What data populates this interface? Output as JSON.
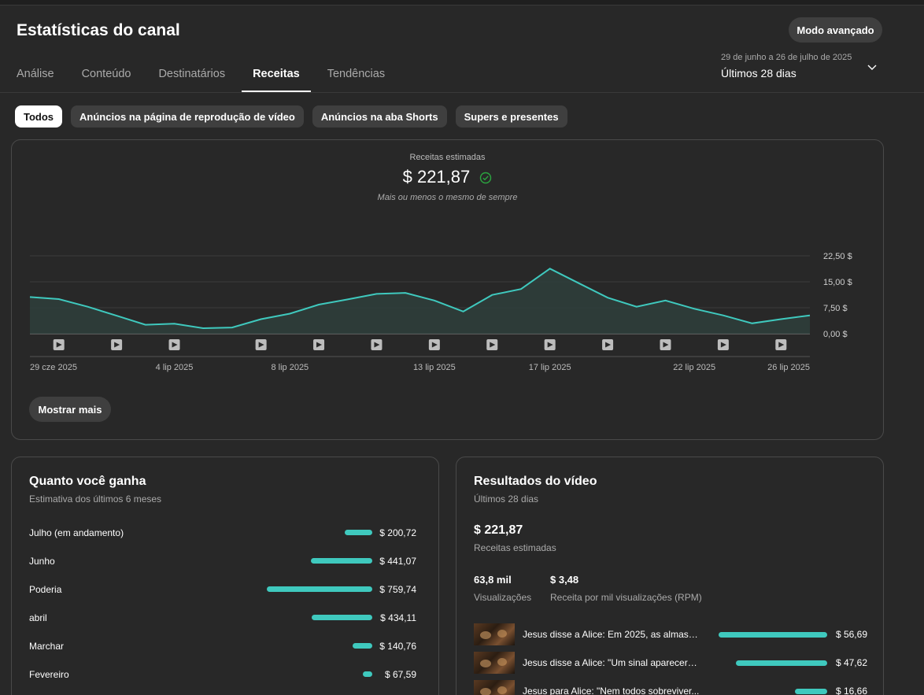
{
  "header": {
    "title": "Estatísticas do canal",
    "advanced_mode": "Modo avançado",
    "date_range_sub": "29 de junho a 26 de julho de 2025",
    "date_range_main": "Últimos 28 dias"
  },
  "tabs": [
    {
      "label": "Análise"
    },
    {
      "label": "Conteúdo"
    },
    {
      "label": "Destinatários"
    },
    {
      "label": "Receitas",
      "active": true
    },
    {
      "label": "Tendências"
    }
  ],
  "chips": [
    {
      "label": "Todos",
      "active": true
    },
    {
      "label": "Anúncios na página de reprodução de vídeo"
    },
    {
      "label": "Anúncios na aba Shorts"
    },
    {
      "label": "Supers e presentes"
    }
  ],
  "revenue": {
    "label": "Receitas estimadas",
    "value": "$ 221,87",
    "note": "Mais ou menos o mesmo de sempre",
    "more_button": "Mostrar mais"
  },
  "chart_data": {
    "type": "area",
    "title": "",
    "x_labels": [
      "29 cze 2025",
      "4 lip 2025",
      "8 lip 2025",
      "13 lip 2025",
      "17 lip 2025",
      "22 lip 2025",
      "26 lip 2025"
    ],
    "x_label_index": [
      0,
      5,
      9,
      14,
      18,
      23,
      27
    ],
    "y_ticks": [
      "22,50 $",
      "15,00 $",
      "7,50 $",
      "0,00 $"
    ],
    "ylim": [
      0,
      22.5
    ],
    "values": [
      10.6,
      10.0,
      7.8,
      5.2,
      2.6,
      2.9,
      1.6,
      1.8,
      4.2,
      5.8,
      8.4,
      9.9,
      11.5,
      11.8,
      9.6,
      6.4,
      11.2,
      12.9,
      18.8,
      14.6,
      10.4,
      7.8,
      9.6,
      7.2,
      5.3,
      3.0,
      4.2,
      5.3
    ],
    "video_markers": [
      1,
      3,
      5,
      8,
      10,
      12,
      14,
      16,
      18,
      20,
      22,
      24,
      26
    ],
    "accent": "#3fc9be",
    "fill": "#2e3e3b"
  },
  "earnings": {
    "title": "Quanto você ganha",
    "subtitle": "Estimativa dos últimos 6 meses",
    "max": 759.74,
    "rows": [
      {
        "label": "Julho (em andamento)",
        "value": 200.72,
        "text": "$ 200,72"
      },
      {
        "label": "Junho",
        "value": 441.07,
        "text": "$ 441,07"
      },
      {
        "label": "Poderia",
        "value": 759.74,
        "text": "$ 759,74"
      },
      {
        "label": "abril",
        "value": 434.11,
        "text": "$ 434,11"
      },
      {
        "label": "Marchar",
        "value": 140.76,
        "text": "$ 140,76"
      },
      {
        "label": "Fevereiro",
        "value": 67.59,
        "text": "$ 67,59"
      }
    ]
  },
  "video_results": {
    "title": "Resultados do vídeo",
    "subtitle": "Últimos 28 dias",
    "total": "$ 221,87",
    "total_label": "Receitas estimadas",
    "views_value": "63,8 mil",
    "views_label": "Visualizações",
    "rpm_value": "$ 3,48",
    "rpm_label": "Receita por mil visualizações (RPM)",
    "max": 56.69,
    "videos": [
      {
        "title": "Jesus disse a Alice: Em 2025, as almas s...",
        "value": 56.69,
        "text": "$ 56,69"
      },
      {
        "title": "Jesus disse a Alice: \"Um sinal aparecerá ...",
        "value": 47.62,
        "text": "$ 47,62"
      },
      {
        "title": "Jesus para Alice: \"Nem todos sobreviver...",
        "value": 16.66,
        "text": "$ 16,66"
      }
    ]
  }
}
